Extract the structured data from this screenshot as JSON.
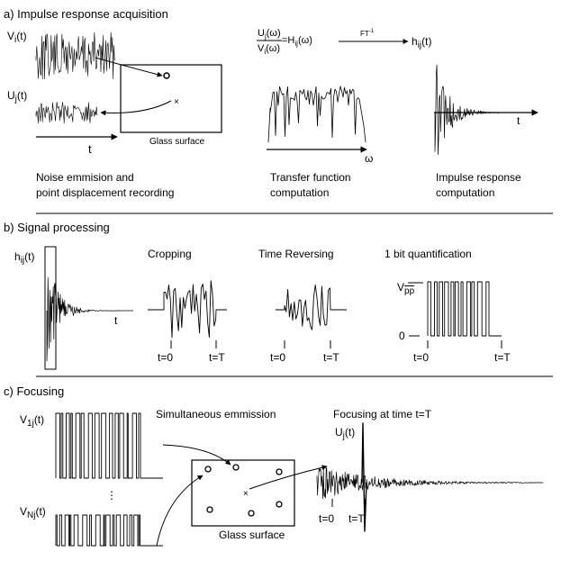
{
  "sections": {
    "a": {
      "heading": "a) Impulse response acquisition",
      "v_label": "Vi(t)",
      "u_label": "Uj(t)",
      "t_axis": "t",
      "glass_label": "Glass surface",
      "caption_left": [
        "Noise emmision and",
        "point displacement recording"
      ],
      "transfer_numerator": "Uj(ω)",
      "transfer_denominator": "Vi(ω)",
      "transfer_rhs": "=Hij(ω)",
      "ft_inverse": "FT⁻¹",
      "h_label": "hij(t)",
      "omega_axis": "ω",
      "caption_mid": [
        "Transfer function",
        "computation"
      ],
      "caption_right": [
        "Impulse response",
        "computation"
      ]
    },
    "b": {
      "heading": "b) Signal processing",
      "h_label": "hij(t)",
      "t_axis": "t",
      "cropping": "Cropping",
      "time_reversing": "Time Reversing",
      "one_bit": "1 bit quantification",
      "vpp": "V",
      "vpp_sub": "pp",
      "zero_level": "0",
      "t0": "t=0",
      "tT": "t=T"
    },
    "c": {
      "heading": "c) Focusing",
      "v1_label": "V1j(t)",
      "vN_label": "VNj(t)",
      "ellipsis": "⋮",
      "simultaneous": "Simultaneous emmission",
      "focusing": "Focusing at time t=T",
      "uj_label": "Uj(t)",
      "glass_label": "Glass surface",
      "t0": "t=0",
      "tT": "t=T"
    }
  }
}
